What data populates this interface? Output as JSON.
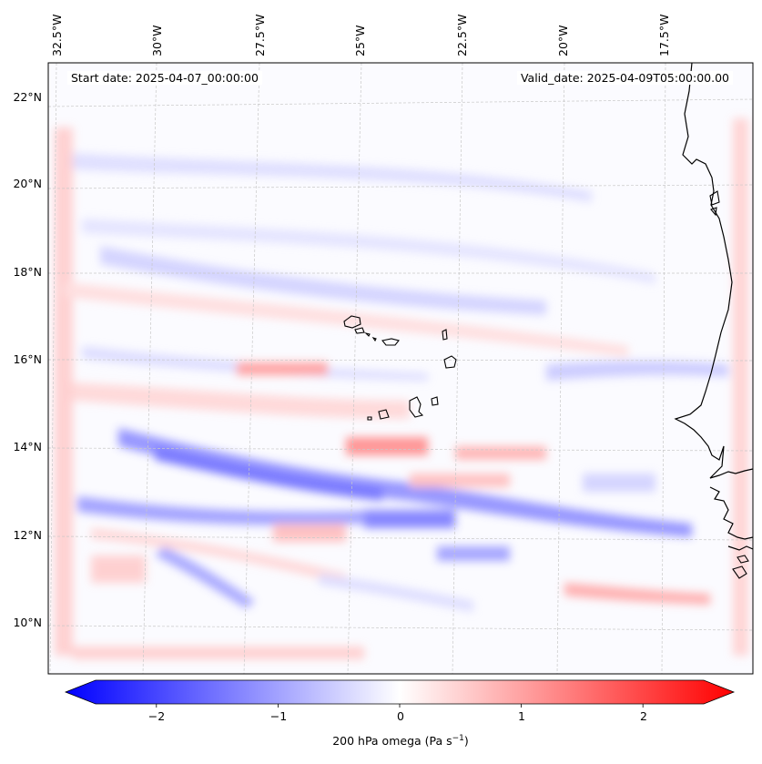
{
  "title_left": "Start date: 2025-04-07_00:00:00",
  "title_right": "Valid_date: 2025-04-09T05:00:00.00",
  "longitude_labels": [
    "32.5°W",
    "30°W",
    "27.5°W",
    "25°W",
    "22.5°W",
    "20°W",
    "17.5°W"
  ],
  "latitude_labels": [
    "22°N",
    "20°N",
    "18°N",
    "16°N",
    "14°N",
    "12°N",
    "10°N"
  ],
  "colorbar": {
    "label": "200 hPa omega (Pa s",
    "label_sup": "−1",
    "label_end": ")",
    "ticks": [
      "−2",
      "−1",
      "0",
      "1",
      "2"
    ],
    "min": -2.5,
    "max": 2.5,
    "cmap": "bwr",
    "colors": {
      "low": "#0000ff",
      "mid": "#ffffff",
      "high": "#ff0000"
    }
  },
  "colors": {
    "coastline": "#000000",
    "gridline": "#c8c8c8"
  }
}
